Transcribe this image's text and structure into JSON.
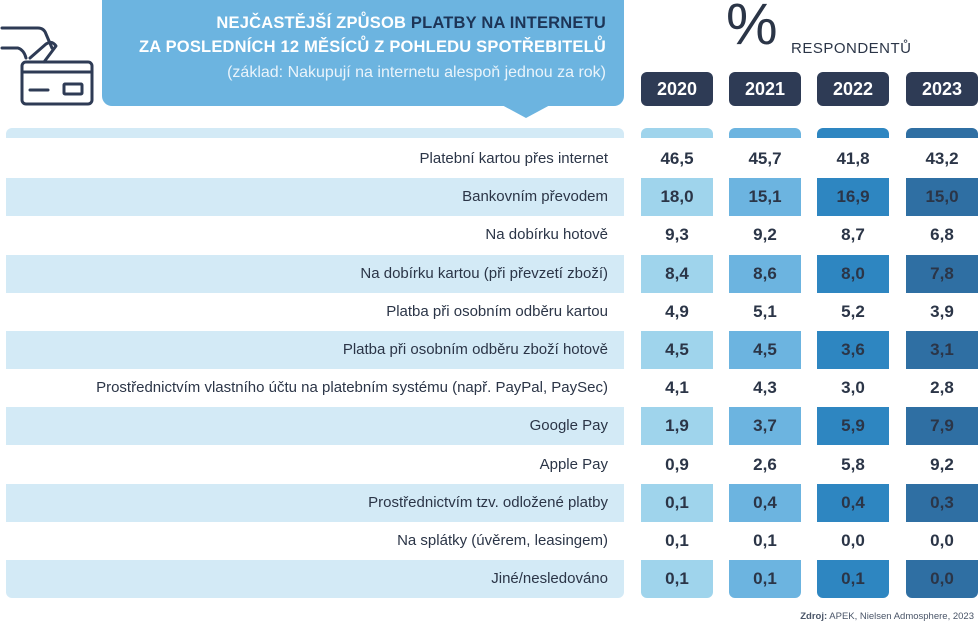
{
  "title": {
    "line1_a": "NEJČASTĚJŠÍ ZPŮSOB ",
    "line1_b": "PLATBY NA INTERNETU",
    "line2": "ZA POSLEDNÍCH 12 MĚSÍCŮ Z POHLEDU SPOTŘEBITELŮ",
    "line3": "(základ: Nakupují na internetu alespoň jednou za rok)"
  },
  "unit": {
    "symbol": "%",
    "label": "RESPONDENTŮ"
  },
  "icon": "credit-card-hand-icon",
  "colors": {
    "title_bg": "#6cb4e0",
    "year_bg": "#2e3b55",
    "band_label": "#d3eaf6",
    "col_2020": "#9fd4ec",
    "col_2021": "#6cb4e0",
    "col_2022": "#2e86c1",
    "col_2023": "#2f6fa3"
  },
  "source": {
    "label": "Zdroj:",
    "text": " APEK, Nielsen Admosphere, 2023"
  },
  "chart_data": {
    "type": "table",
    "columns": [
      "2020",
      "2021",
      "2022",
      "2023"
    ],
    "rows": [
      {
        "label": "Platební kartou přes internet",
        "values": [
          "46,5",
          "45,7",
          "41,8",
          "43,2"
        ]
      },
      {
        "label": "Bankovním převodem",
        "values": [
          "18,0",
          "15,1",
          "16,9",
          "15,0"
        ]
      },
      {
        "label": "Na dobírku hotově",
        "values": [
          "9,3",
          "9,2",
          "8,7",
          "6,8"
        ]
      },
      {
        "label": "Na dobírku kartou (při převzetí zboží)",
        "values": [
          "8,4",
          "8,6",
          "8,0",
          "7,8"
        ]
      },
      {
        "label": "Platba při osobním odběru kartou",
        "values": [
          "4,9",
          "5,1",
          "5,2",
          "3,9"
        ]
      },
      {
        "label": "Platba při osobním odběru zboží hotově",
        "values": [
          "4,5",
          "4,5",
          "3,6",
          "3,1"
        ]
      },
      {
        "label": "Prostřednictvím vlastního účtu na platebním systému (např. PayPal, PaySec)",
        "values": [
          "4,1",
          "4,3",
          "3,0",
          "2,8"
        ]
      },
      {
        "label": "Google Pay",
        "values": [
          "1,9",
          "3,7",
          "5,9",
          "7,9"
        ]
      },
      {
        "label": "Apple Pay",
        "values": [
          "0,9",
          "2,6",
          "5,8",
          "9,2"
        ]
      },
      {
        "label": "Prostřednictvím tzv. odložené platby",
        "values": [
          "0,1",
          "0,4",
          "0,4",
          "0,3"
        ]
      },
      {
        "label": "Na splátky (úvěrem, leasingem)",
        "values": [
          "0,1",
          "0,1",
          "0,0",
          "0,0"
        ]
      },
      {
        "label": "Jiné/nesledováno",
        "values": [
          "0,1",
          "0,1",
          "0,1",
          "0,0"
        ]
      }
    ]
  }
}
